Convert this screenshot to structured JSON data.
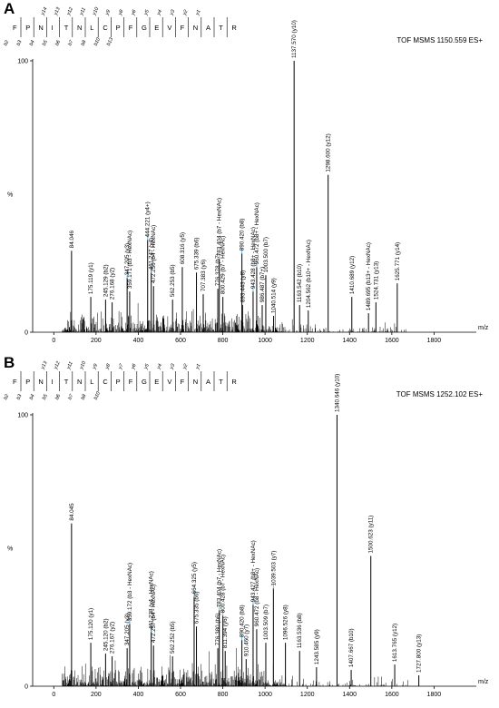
{
  "chart_data": [
    {
      "type": "bar",
      "panel": "A",
      "instrument": "TOF MSMS 1150.559 ES+",
      "sequence": [
        "F",
        "P",
        "N",
        "I",
        "T",
        "N",
        "L",
        "C",
        "P",
        "F",
        "G",
        "E",
        "V",
        "F",
        "N",
        "A",
        "T",
        "R"
      ],
      "y_ions_top": [
        "y14",
        "y13",
        "y12",
        "y11",
        "y10",
        "y9",
        "y8",
        "y6",
        "y5",
        "y4",
        "y3",
        "y2",
        "y1"
      ],
      "b_ions_bottom": [
        "b2",
        "b3",
        "b4",
        "b5",
        "b6",
        "b7",
        "b8",
        "b10",
        "b13"
      ],
      "xlabel": "m/z",
      "ylabel": "%",
      "xlim": [
        -100,
        2000
      ],
      "ylim": [
        0,
        100
      ],
      "xticks": [
        0,
        200,
        400,
        600,
        800,
        1000,
        1200,
        1400,
        1600,
        1800
      ],
      "yticks": [
        0,
        100
      ],
      "peaks": [
        {
          "mz": 84.046,
          "i": 30,
          "label": "84.046"
        },
        {
          "mz": 175.119,
          "i": 13,
          "label": "175.119 (y1)"
        },
        {
          "mz": 245.129,
          "i": 12,
          "label": "245.129 (b2)"
        },
        {
          "mz": 276.168,
          "i": 11,
          "label": "276.168 (y2)"
        },
        {
          "mz": 347.205,
          "i": 20,
          "label": "347.205 (y3)",
          "hl": true
        },
        {
          "mz": 359.171,
          "i": 15,
          "label": "359.171 (b3 - HexNAc)"
        },
        {
          "mz": 444.221,
          "i": 34,
          "label": "444.221 (y4+)",
          "hl": true
        },
        {
          "mz": 461.247,
          "i": 22,
          "label": "461.247 (y4)",
          "hl": true
        },
        {
          "mz": 472.256,
          "i": 17,
          "label": "472.256 (b4 - HexNAc)"
        },
        {
          "mz": 562.253,
          "i": 12,
          "label": "562.253 (b5)"
        },
        {
          "mz": 608.316,
          "i": 24,
          "label": "608.316 (y5)"
        },
        {
          "mz": 675.339,
          "i": 22,
          "label": "675.339 (b6)"
        },
        {
          "mz": 707.383,
          "i": 14,
          "label": "707.383 (y6)"
        },
        {
          "mz": 776.378,
          "i": 16,
          "label": "776.378 (b7)"
        },
        {
          "mz": 783.404,
          "i": 27,
          "label": "783.404 (b7 - HexNAc)",
          "hl": true
        },
        {
          "mz": 800.429,
          "i": 13,
          "label": "800.429 (b7 - HexNAc)"
        },
        {
          "mz": 890.42,
          "i": 29,
          "label": "890.420 (b8)",
          "hl": true
        },
        {
          "mz": 893.443,
          "i": 10,
          "label": "893.443 (y8)"
        },
        {
          "mz": 943.428,
          "i": 15,
          "label": "943.428 (b8+ - HexNAc)",
          "hl": true
        },
        {
          "mz": 960.472,
          "i": 24,
          "label": "960.472 (b8+ - HexNAc)",
          "hl": true
        },
        {
          "mz": 986.487,
          "i": 10,
          "label": "986.487 (b7+)"
        },
        {
          "mz": 1003.5,
          "i": 21,
          "label": "1003.500 (b7)"
        },
        {
          "mz": 1040.514,
          "i": 6,
          "label": "1040.514 (y9)"
        },
        {
          "mz": 1137.57,
          "i": 100,
          "label": "1137.570 (y10)"
        },
        {
          "mz": 1163.542,
          "i": 10,
          "label": "1163.542 (b10)"
        },
        {
          "mz": 1204.562,
          "i": 8,
          "label": "1204.562 (b10+ - HexNAc)"
        },
        {
          "mz": 1298.6,
          "i": 58,
          "label": "1298.600 (y12)"
        },
        {
          "mz": 1410.689,
          "i": 13,
          "label": "1410.689 (y12)"
        },
        {
          "mz": 1489.695,
          "i": 7,
          "label": "1489.695 (b13+ - HexNAc)"
        },
        {
          "mz": 1524.731,
          "i": 11,
          "label": "1524.731 (y13)"
        },
        {
          "mz": 1625.771,
          "i": 18,
          "label": "1625.771 (y14)"
        }
      ]
    },
    {
      "type": "bar",
      "panel": "B",
      "instrument": "TOF MSMS 1252.102 ES+",
      "sequence": [
        "F",
        "P",
        "N",
        "I",
        "T",
        "N",
        "L",
        "C",
        "P",
        "F",
        "G",
        "E",
        "V",
        "F",
        "N",
        "A",
        "T",
        "R"
      ],
      "y_ions_top": [
        "y13",
        "y12",
        "y11",
        "y10",
        "y9",
        "y8",
        "y7",
        "y6",
        "y5",
        "y4",
        "y3",
        "y2",
        "y1"
      ],
      "b_ions_bottom": [
        "b2",
        "b3",
        "b4",
        "b5",
        "b6",
        "b7",
        "b8",
        "b10"
      ],
      "xlabel": "m/z",
      "ylabel": "%",
      "xlim": [
        -100,
        2000
      ],
      "ylim": [
        0,
        100
      ],
      "xticks": [
        0,
        200,
        400,
        600,
        800,
        1000,
        1200,
        1400,
        1600,
        1800
      ],
      "yticks": [
        0,
        100
      ],
      "peaks": [
        {
          "mz": 84.045,
          "i": 60,
          "label": "84.045"
        },
        {
          "mz": 175.12,
          "i": 16,
          "label": "175.120 (y1)"
        },
        {
          "mz": 245.12,
          "i": 12,
          "label": "245.120 (b2)"
        },
        {
          "mz": 276.167,
          "i": 11,
          "label": "276.167 (y2)"
        },
        {
          "mz": 347.205,
          "i": 14,
          "label": "347.205 (y3)"
        },
        {
          "mz": 359.172,
          "i": 23,
          "label": "359.172 (b3 - HexNAc)",
          "hl": true
        },
        {
          "mz": 461.238,
          "i": 20,
          "label": "461.238 (y4 - HexNAc)",
          "hl": true
        },
        {
          "mz": 472.257,
          "i": 15,
          "label": "472.257 (b4 - HexNAc)"
        },
        {
          "mz": 562.252,
          "i": 11,
          "label": "562.252 (b5)"
        },
        {
          "mz": 664.325,
          "i": 33,
          "label": "664.325 (y5)",
          "hl": true
        },
        {
          "mz": 675.335,
          "i": 22,
          "label": "675.335 (b6)"
        },
        {
          "mz": 776.38,
          "i": 14,
          "label": "776.380 (b6)"
        },
        {
          "mz": 783.404,
          "i": 28,
          "label": "783.404 (b7 - HexNAc)",
          "hl": true
        },
        {
          "mz": 800.428,
          "i": 26,
          "label": "800.428 (b7 - HexNAc)",
          "hl": true
        },
        {
          "mz": 811.394,
          "i": 13,
          "label": "811.394 (y6)"
        },
        {
          "mz": 890.42,
          "i": 17,
          "label": "890.420 (b8)",
          "hl": true
        },
        {
          "mz": 910.46,
          "i": 10,
          "label": "910.460 (y7)"
        },
        {
          "mz": 943.427,
          "i": 30,
          "label": "943.427 (b8+ - HexNAc)",
          "hl": true
        },
        {
          "mz": 960.472,
          "i": 21,
          "label": "960.472 (b8 - HexNAc)"
        },
        {
          "mz": 1003.509,
          "i": 16,
          "label": "1003.509 (b7)"
        },
        {
          "mz": 1039.503,
          "i": 36,
          "label": "1039.503 (y7)",
          "hl": true
        },
        {
          "mz": 1096.526,
          "i": 16,
          "label": "1096.526 (y8)"
        },
        {
          "mz": 1163.536,
          "i": 13,
          "label": "1163.536 (b8)"
        },
        {
          "mz": 1243.585,
          "i": 7,
          "label": "1243.585 (y9)"
        },
        {
          "mz": 1340.646,
          "i": 100,
          "label": "1340.646 (y10)"
        },
        {
          "mz": 1407.667,
          "i": 6,
          "label": "1407.667 (b10)"
        },
        {
          "mz": 1500.623,
          "i": 48,
          "label": "1500.623 (y11)"
        },
        {
          "mz": 1613.765,
          "i": 8,
          "label": "1613.765 (y12)"
        },
        {
          "mz": 1727.8,
          "i": 4,
          "label": "1727.800 (y13)"
        }
      ]
    }
  ],
  "panels": [
    {
      "letter": "A",
      "instrument": "TOF MSMS 1150.559 ES+"
    },
    {
      "letter": "B",
      "instrument": "TOF MSMS 1252.102 ES+"
    }
  ],
  "colors": {
    "highlight": "#6ab7e6",
    "axis": "#000000",
    "peak": "#000000"
  }
}
